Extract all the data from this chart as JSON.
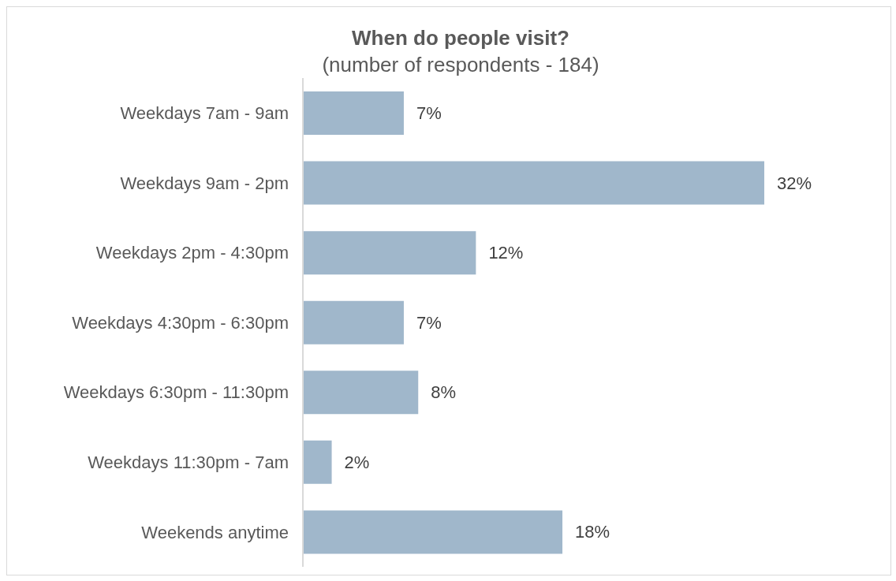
{
  "chart_data": {
    "type": "bar",
    "orientation": "horizontal",
    "title": "When do people visit?",
    "subtitle": "(number of respondents - 184)",
    "categories": [
      "Weekdays 7am - 9am",
      "Weekdays 9am - 2pm",
      "Weekdays 2pm - 4:30pm",
      "Weekdays 4:30pm - 6:30pm",
      "Weekdays 6:30pm - 11:30pm",
      "Weekdays 11:30pm - 7am",
      "Weekends anytime"
    ],
    "values": [
      7,
      32,
      12,
      7,
      8,
      2,
      18
    ],
    "value_labels": [
      "7%",
      "32%",
      "12%",
      "7%",
      "8%",
      "2%",
      "18%"
    ],
    "color": "#a0b7cb",
    "tick_labels": "y"
  }
}
